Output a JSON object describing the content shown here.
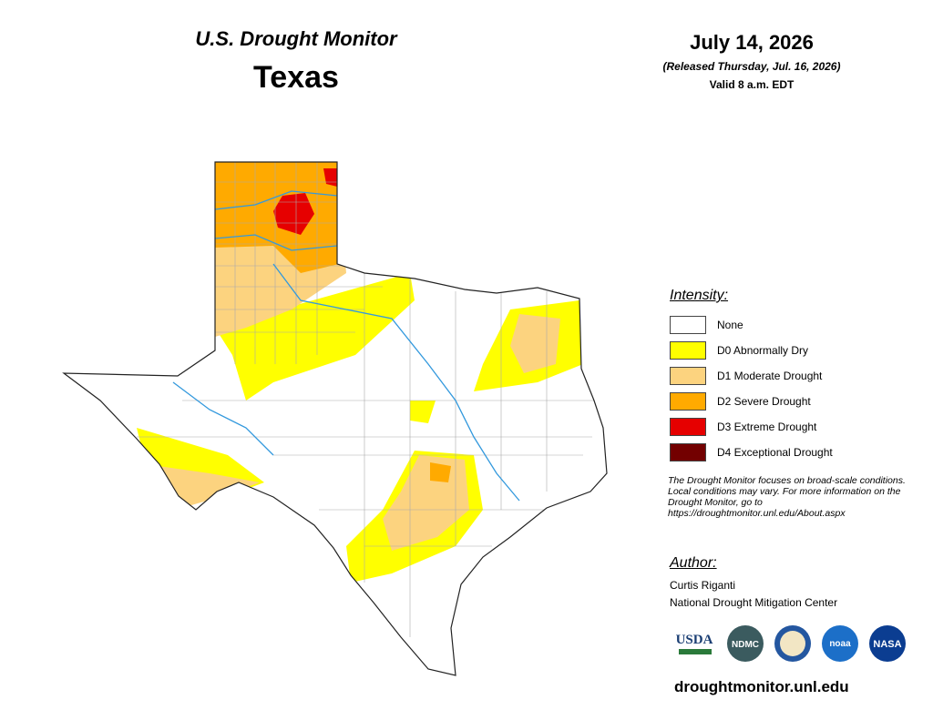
{
  "header": {
    "title": "U.S. Drought Monitor",
    "state": "Texas",
    "date": "July 14, 2026",
    "released": "(Released Thursday, Jul. 16, 2026)",
    "valid": "Valid 8 a.m. EDT"
  },
  "legend": {
    "title": "Intensity:",
    "items": [
      {
        "label": "None",
        "color": "#ffffff"
      },
      {
        "label": "D0 Abnormally Dry",
        "color": "#ffff00"
      },
      {
        "label": "D1 Moderate Drought",
        "color": "#fcd37f"
      },
      {
        "label": "D2 Severe Drought",
        "color": "#ffaa00"
      },
      {
        "label": "D3 Extreme Drought",
        "color": "#e60000"
      },
      {
        "label": "D4 Exceptional Drought",
        "color": "#730000"
      }
    ]
  },
  "note": "The Drought Monitor focuses on broad-scale conditions. Local conditions may vary. For more information on the Drought Monitor, go to https://droughtmonitor.unl.edu/About.aspx",
  "author": {
    "title": "Author:",
    "name": "Curtis Riganti",
    "org": "National Drought Mitigation Center"
  },
  "logos": [
    "USDA",
    "NDMC",
    "noaa",
    "NASA"
  ],
  "footer": "droughtmonitor.unl.edu"
}
